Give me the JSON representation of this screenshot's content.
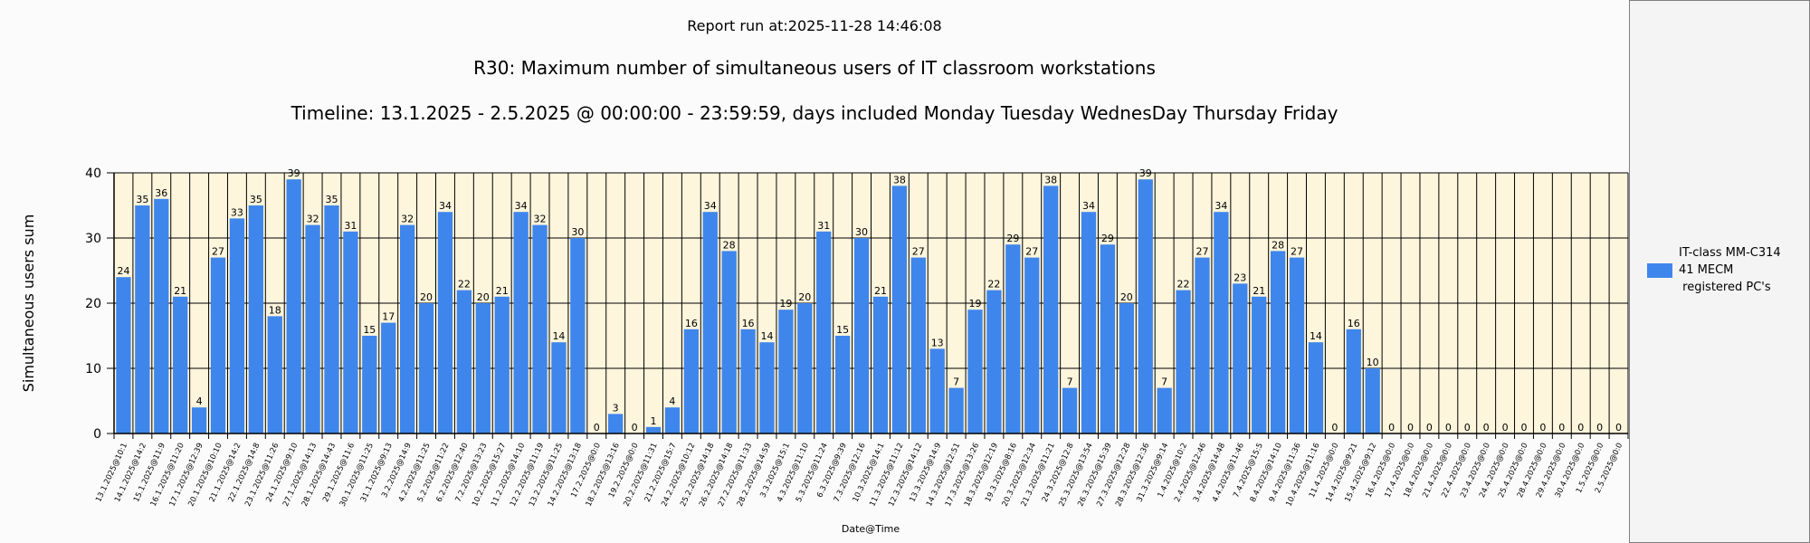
{
  "header": {
    "report_run": "Report run at:2025-11-28 14:46:08",
    "title": "R30: Maximum number of simultaneous users of IT classroom workstations",
    "subtitle": "Timeline: 13.1.2025  - 2.5.2025  @  00:00:00 -  23:59:59, days included Monday Tuesday WednesDay Thursday Friday"
  },
  "colors": {
    "bar": "#3f86ec",
    "plot_background": "#fdf5dc",
    "grid": "#000000"
  },
  "chart_data": {
    "type": "bar",
    "xlabel": "Date@Time",
    "ylabel": "Simultaneous users sum",
    "ylim": [
      0,
      40
    ],
    "yticks": [
      0,
      10,
      20,
      30,
      40
    ],
    "grid": true,
    "legend_position": "right",
    "categories": [
      "13.1.2025@10:1",
      "14.1.2025@14:2",
      "15.1.2025@11:9",
      "16.1.2025@11:20",
      "17.1.2025@12:39",
      "20.1.2025@10:10",
      "21.1.2025@14:2",
      "22.1.2025@14:8",
      "23.1.2025@11:26",
      "24.1.2025@9:10",
      "27.1.2025@14:13",
      "28.1.2025@14:43",
      "29.1.2025@11:6",
      "30.1.2025@11:25",
      "31.1.2025@9:13",
      "3.2.2025@14:9",
      "4.2.2025@11:25",
      "5.2.2025@11:22",
      "6.2.2025@12:40",
      "7.2.2025@13:23",
      "10.2.2025@15:27",
      "11.2.2025@14:10",
      "12.2.2025@11:19",
      "13.2.2025@11:25",
      "14.2.2025@13:18",
      "17.2.2025@0:0",
      "18.2.2025@13:16",
      "19.2.2025@0:0",
      "20.2.2025@11:31",
      "21.2.2025@15:7",
      "24.2.2025@10:12",
      "25.2.2025@14:18",
      "26.2.2025@14:18",
      "27.2.2025@11:33",
      "28.2.2025@14:59",
      "3.3.2025@15:1",
      "4.3.2025@11:10",
      "5.3.2025@11:24",
      "6.3.2025@9:39",
      "7.3.2025@12:16",
      "10.3.2025@14:1",
      "11.3.2025@11:12",
      "12.3.2025@14:12",
      "13.3.2025@14:9",
      "14.3.2025@12:51",
      "17.3.2025@13:26",
      "18.3.2025@12:19",
      "19.3.2025@8:16",
      "20.3.2025@12:34",
      "21.3.2025@11:21",
      "24.3.2025@12:8",
      "25.3.2025@13:54",
      "26.3.2025@15:39",
      "27.3.2025@12:28",
      "28.3.2025@12:36",
      "31.3.2025@9:14",
      "1.4.2025@10:2",
      "2.4.2025@12:46",
      "3.4.2025@14:48",
      "4.4.2025@11:46",
      "7.4.2025@15:5",
      "8.4.2025@14:10",
      "9.4.2025@11:36",
      "10.4.2025@11:16",
      "11.4.2025@0:0",
      "14.4.2025@9:21",
      "15.4.2025@9:12",
      "16.4.2025@0:0",
      "17.4.2025@0:0",
      "18.4.2025@0:0",
      "21.4.2025@0:0",
      "22.4.2025@0:0",
      "23.4.2025@0:0",
      "24.4.2025@0:0",
      "25.4.2025@0:0",
      "28.4.2025@0:0",
      "29.4.2025@0:0",
      "30.4.2025@0:0",
      "1.5.2025@0:0",
      "2.5.2025@0:0"
    ],
    "series": [
      {
        "name": "IT-class MM-C314\n41 MECM\n registered PC's",
        "values": [
          24,
          35,
          36,
          21,
          4,
          27,
          33,
          35,
          18,
          39,
          32,
          35,
          31,
          15,
          17,
          32,
          20,
          34,
          22,
          20,
          21,
          34,
          32,
          14,
          30,
          0,
          3,
          0,
          1,
          4,
          16,
          34,
          28,
          16,
          14,
          19,
          20,
          31,
          15,
          30,
          21,
          38,
          27,
          13,
          7,
          19,
          22,
          29,
          27,
          38,
          7,
          34,
          29,
          20,
          39,
          7,
          22,
          27,
          34,
          23,
          21,
          28,
          27,
          14,
          0,
          16,
          10,
          0,
          0,
          0,
          0,
          0,
          0,
          0,
          0,
          0,
          0,
          0,
          0,
          0
        ]
      }
    ]
  }
}
